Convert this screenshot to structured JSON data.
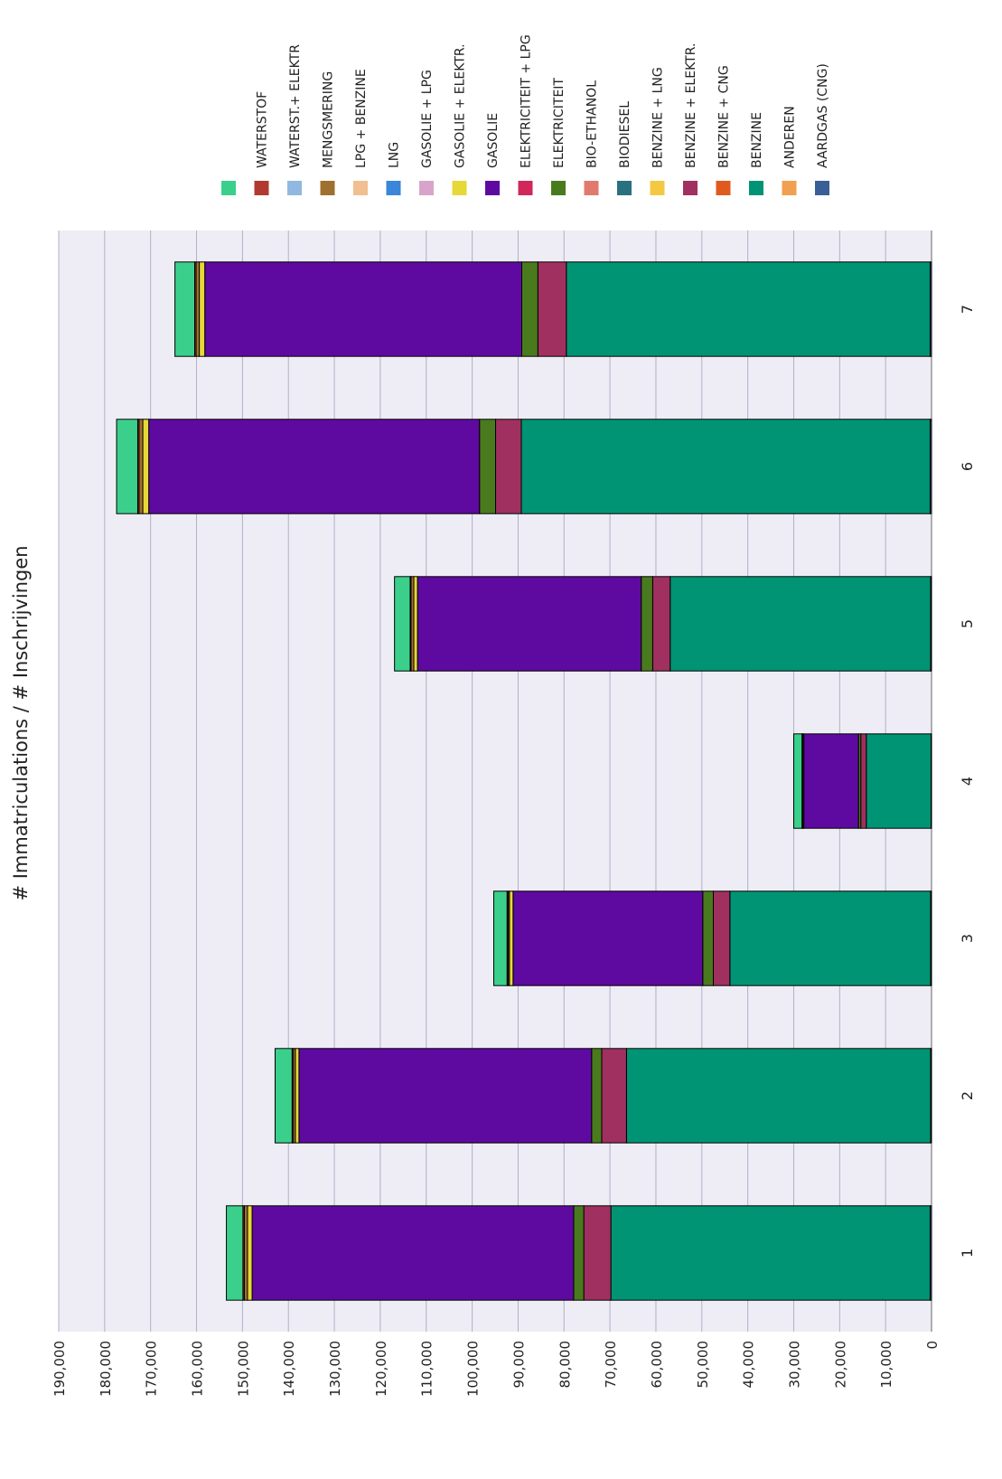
{
  "chart_data": {
    "type": "bar",
    "stacked": true,
    "orientation": "vertical (image rotated 90°)",
    "ylabel": "# Immatriculations / # Inschrijvingen",
    "xlabel": "",
    "title": "",
    "ylim": [
      0,
      190000
    ],
    "yticks": [
      "0",
      "10,000",
      "20,000",
      "30,000",
      "40,000",
      "50,000",
      "60,000",
      "70,000",
      "80,000",
      "90,000",
      "100,000",
      "110,000",
      "120,000",
      "130,000",
      "140,000",
      "150,000",
      "160,000",
      "170,000",
      "180,000",
      "190,000"
    ],
    "grid": true,
    "legend_position": "top",
    "categories": [
      "1",
      "2",
      "3",
      "4",
      "5",
      "6",
      "7"
    ],
    "series": [
      {
        "name": "AARDGAS (CNG)",
        "color": "#3a5f96",
        "values": [
          300,
          200,
          200,
          100,
          200,
          300,
          300
        ]
      },
      {
        "name": "ANDEREN",
        "color": "#f0a050",
        "values": [
          0,
          0,
          0,
          0,
          0,
          0,
          0
        ]
      },
      {
        "name": "BENZINE",
        "color": "#009474",
        "values": [
          69500,
          66200,
          43700,
          14100,
          56700,
          89000,
          79200
        ]
      },
      {
        "name": "BENZINE + CNG",
        "color": "#e05a1e",
        "values": [
          0,
          0,
          0,
          0,
          0,
          0,
          0
        ]
      },
      {
        "name": "BENZINE + ELEKTR.",
        "color": "#a03060",
        "values": [
          5900,
          5400,
          3600,
          1200,
          3800,
          5600,
          6200
        ]
      },
      {
        "name": "BENZINE + LNG",
        "color": "#f5c842",
        "values": [
          0,
          0,
          0,
          0,
          0,
          0,
          0
        ]
      },
      {
        "name": "BIODIESEL",
        "color": "#2a7080",
        "values": [
          0,
          0,
          0,
          0,
          0,
          0,
          0
        ]
      },
      {
        "name": "BIO-ETHANOL",
        "color": "#e07a6e",
        "values": [
          0,
          0,
          0,
          0,
          0,
          0,
          0
        ]
      },
      {
        "name": "ELEKTRICITEIT",
        "color": "#4a7a1e",
        "values": [
          2200,
          2200,
          2300,
          500,
          2500,
          3500,
          3500
        ]
      },
      {
        "name": "ELEKTRICITEIT + LPG",
        "color": "#d02858",
        "values": [
          0,
          0,
          0,
          0,
          0,
          0,
          0
        ]
      },
      {
        "name": "GASOLIE",
        "color": "#5e0aa0",
        "values": [
          70000,
          63700,
          41300,
          11900,
          48700,
          72000,
          69000
        ]
      },
      {
        "name": "GASOLIE + ELEKTR.",
        "color": "#e6d838",
        "values": [
          1000,
          800,
          800,
          200,
          800,
          1300,
          1200
        ]
      },
      {
        "name": "GASOLIE + LPG",
        "color": "#d8a4cc",
        "values": [
          0,
          0,
          0,
          0,
          0,
          0,
          0
        ]
      },
      {
        "name": "LNG",
        "color": "#3a86d8",
        "values": [
          0,
          0,
          0,
          0,
          0,
          0,
          0
        ]
      },
      {
        "name": "LPG + BENZINE",
        "color": "#f0c090",
        "values": [
          0,
          0,
          0,
          0,
          0,
          0,
          0
        ]
      },
      {
        "name": "MENGSMERING",
        "color": "#a07030",
        "values": [
          700,
          500,
          300,
          100,
          600,
          800,
          700
        ]
      },
      {
        "name": "WATERST.+ ELEKTR",
        "color": "#90b8e0",
        "values": [
          0,
          0,
          0,
          0,
          0,
          0,
          0
        ]
      },
      {
        "name": "WATERSTOF",
        "color": "#b03a30",
        "values": [
          300,
          200,
          200,
          100,
          200,
          300,
          300
        ]
      },
      {
        "name": "",
        "color": "#3ad08c",
        "values": [
          3600,
          3700,
          2900,
          1800,
          3400,
          4600,
          4300
        ]
      }
    ],
    "legend_order": [
      "",
      "WATERSTOF",
      "WATERST.+ ELEKTR",
      "MENGSMERING",
      "LPG + BENZINE",
      "LNG",
      "GASOLIE + LPG",
      "GASOLIE + ELEKTR.",
      "GASOLIE",
      "ELEKTRICITEIT + LPG",
      "ELEKTRICITEIT",
      "BIO-ETHANOL",
      "BIODIESEL",
      "BENZINE + LNG",
      "BENZINE + ELEKTR.",
      "BENZINE + CNG",
      "BENZINE",
      "ANDEREN",
      "AARDGAS (CNG)"
    ],
    "plot_background": "#eeedf5",
    "grid_color": "#b0b0c8"
  }
}
